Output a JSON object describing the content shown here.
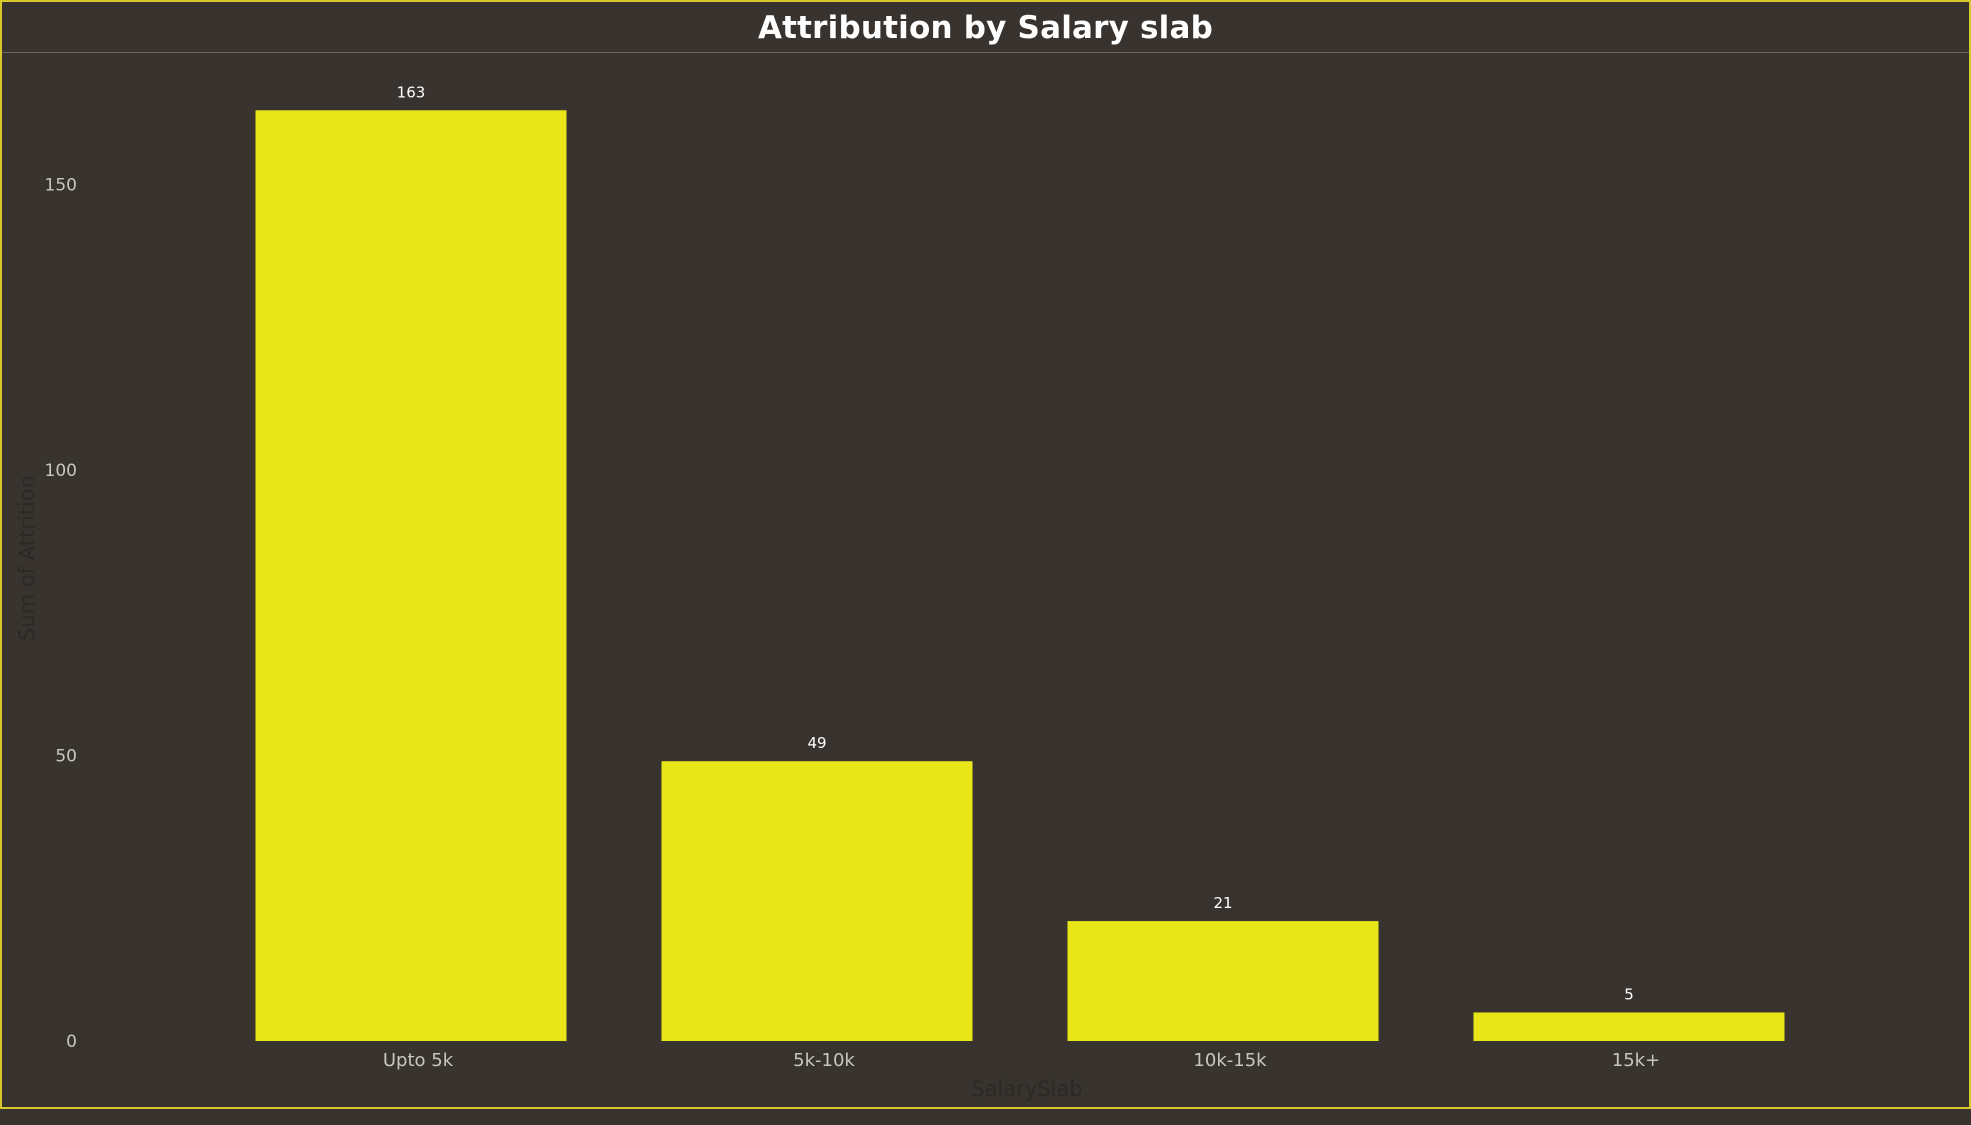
{
  "chart_data": {
    "type": "bar",
    "title": "Attribution by Salary slab",
    "xlabel": "SalarySlab",
    "ylabel": "Sum of Attrition",
    "categories": [
      "Upto 5k",
      "5k-10k",
      "10k-15k",
      "15k+"
    ],
    "values": [
      163,
      49,
      21,
      5
    ],
    "data_labels": [
      "163",
      "49",
      "21",
      "5"
    ],
    "ylim": [
      0,
      175
    ],
    "yticks": [
      0,
      50,
      100,
      150
    ],
    "ytick_labels": [
      "0",
      "50",
      "100",
      "150"
    ],
    "grid": false,
    "legend": "none",
    "bar_color": "#e8e619",
    "background_color": "#38332f",
    "border_color": "#d8c92a"
  }
}
